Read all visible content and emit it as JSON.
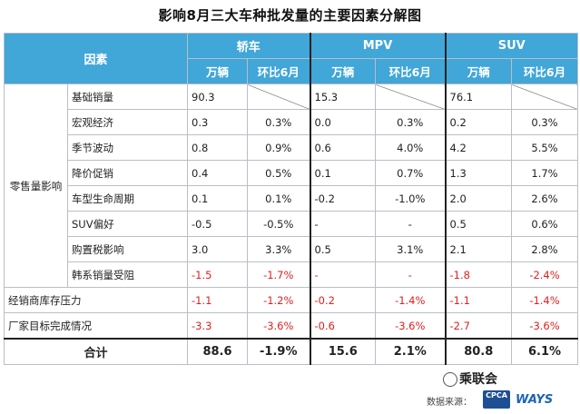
{
  "title": "影响8月三大车种批发量的主要因素分解图",
  "header": {
    "factor": "因素",
    "groups": [
      "轿车",
      "MPV",
      "SUV"
    ],
    "sub": [
      "万辆",
      "环比6月"
    ]
  },
  "group_label": "零售量影响",
  "rows": [
    {
      "label": "基础销量",
      "sedan": [
        "90.3",
        ""
      ],
      "mpv": [
        "15.3",
        ""
      ],
      "suv": [
        "76.1",
        ""
      ],
      "red": false,
      "diag": true
    },
    {
      "label": "宏观经济",
      "sedan": [
        "0.3",
        "0.3%"
      ],
      "mpv": [
        "0.0",
        "0.3%"
      ],
      "suv": [
        "0.2",
        "0.3%"
      ],
      "red": false
    },
    {
      "label": "季节波动",
      "sedan": [
        "0.8",
        "0.9%"
      ],
      "mpv": [
        "0.6",
        "4.0%"
      ],
      "suv": [
        "4.2",
        "5.5%"
      ],
      "red": false
    },
    {
      "label": "降价促销",
      "sedan": [
        "0.4",
        "0.5%"
      ],
      "mpv": [
        "0.1",
        "0.7%"
      ],
      "suv": [
        "1.3",
        "1.7%"
      ],
      "red": false
    },
    {
      "label": "车型生命周期",
      "sedan": [
        "0.1",
        "0.1%"
      ],
      "mpv": [
        "-0.2",
        "-1.0%"
      ],
      "suv": [
        "2.0",
        "2.6%"
      ],
      "red": false
    },
    {
      "label": "SUV偏好",
      "sedan": [
        "-0.5",
        "-0.5%"
      ],
      "mpv": [
        "-",
        "-"
      ],
      "suv": [
        "0.5",
        "0.6%"
      ],
      "red": false
    },
    {
      "label": "购置税影响",
      "sedan": [
        "3.0",
        "3.3%"
      ],
      "mpv": [
        "0.5",
        "3.1%"
      ],
      "suv": [
        "2.1",
        "2.8%"
      ],
      "red": false
    },
    {
      "label": "韩系销量受阻",
      "sedan": [
        "-1.5",
        "-1.7%"
      ],
      "mpv": [
        "-",
        "-"
      ],
      "suv": [
        "-1.8",
        "-2.4%"
      ],
      "red": true
    }
  ],
  "extra_rows": [
    {
      "label": "经销商库存压力",
      "sedan": [
        "-1.1",
        "-1.2%"
      ],
      "mpv": [
        "-0.2",
        "-1.4%"
      ],
      "suv": [
        "-1.1",
        "-1.4%"
      ],
      "red": true
    },
    {
      "label": "厂家目标完成情况",
      "sedan": [
        "-3.3",
        "-3.6%"
      ],
      "mpv": [
        "-0.6",
        "-3.6%"
      ],
      "suv": [
        "-2.7",
        "-3.6%"
      ],
      "red": true
    }
  ],
  "total": {
    "label": "合计",
    "sedan": [
      "88.6",
      "-1.9%"
    ],
    "mpv": [
      "15.6",
      "2.1%"
    ],
    "suv": [
      "80.8",
      "6.1%"
    ]
  },
  "footer": {
    "source_label": "数据来源：",
    "watermark": "乘联会",
    "logo_cpca": "CPCA",
    "logo_ways": "WAYS"
  }
}
